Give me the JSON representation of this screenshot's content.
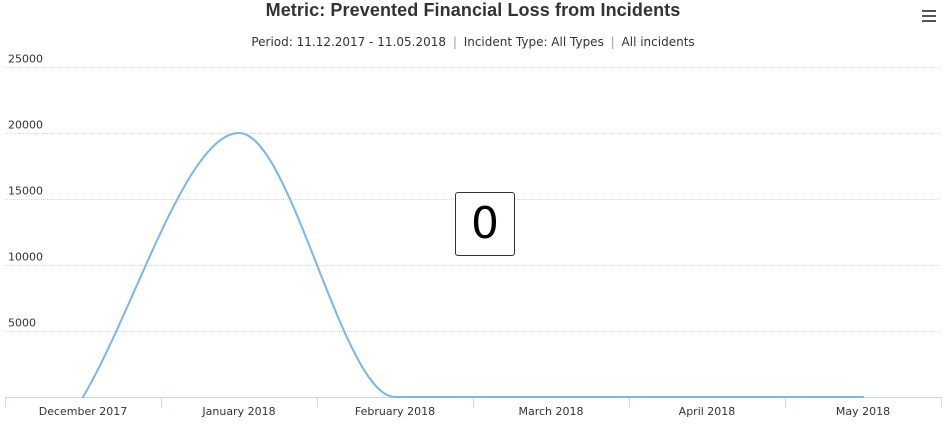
{
  "title": "Metric: Prevented Financial Loss from Incidents",
  "subtitle": {
    "period": "Period: 11.12.2017 - 11.05.2018",
    "sep1": "|",
    "incident_type": "Incident Type: All Types",
    "sep2": "|",
    "scope": "All incidents"
  },
  "value_box": "0",
  "menu": {
    "icon": "hamburger-menu-icon"
  },
  "colors": {
    "series": "#7cb5ec",
    "grid": "#d8d8d8",
    "axis": "#ccd6eb"
  },
  "chart_data": {
    "type": "line",
    "categories": [
      "December 2017",
      "January 2018",
      "February 2018",
      "March 2018",
      "April 2018",
      "May 2018"
    ],
    "series": [
      {
        "values": [
          0,
          20000,
          0,
          0,
          0,
          0
        ]
      }
    ],
    "ylim": [
      0,
      25000
    ],
    "yticks": [
      5000,
      10000,
      15000,
      20000,
      25000
    ],
    "xlabel": "",
    "ylabel": "",
    "grid": true,
    "smooth": true,
    "legend": "none"
  }
}
